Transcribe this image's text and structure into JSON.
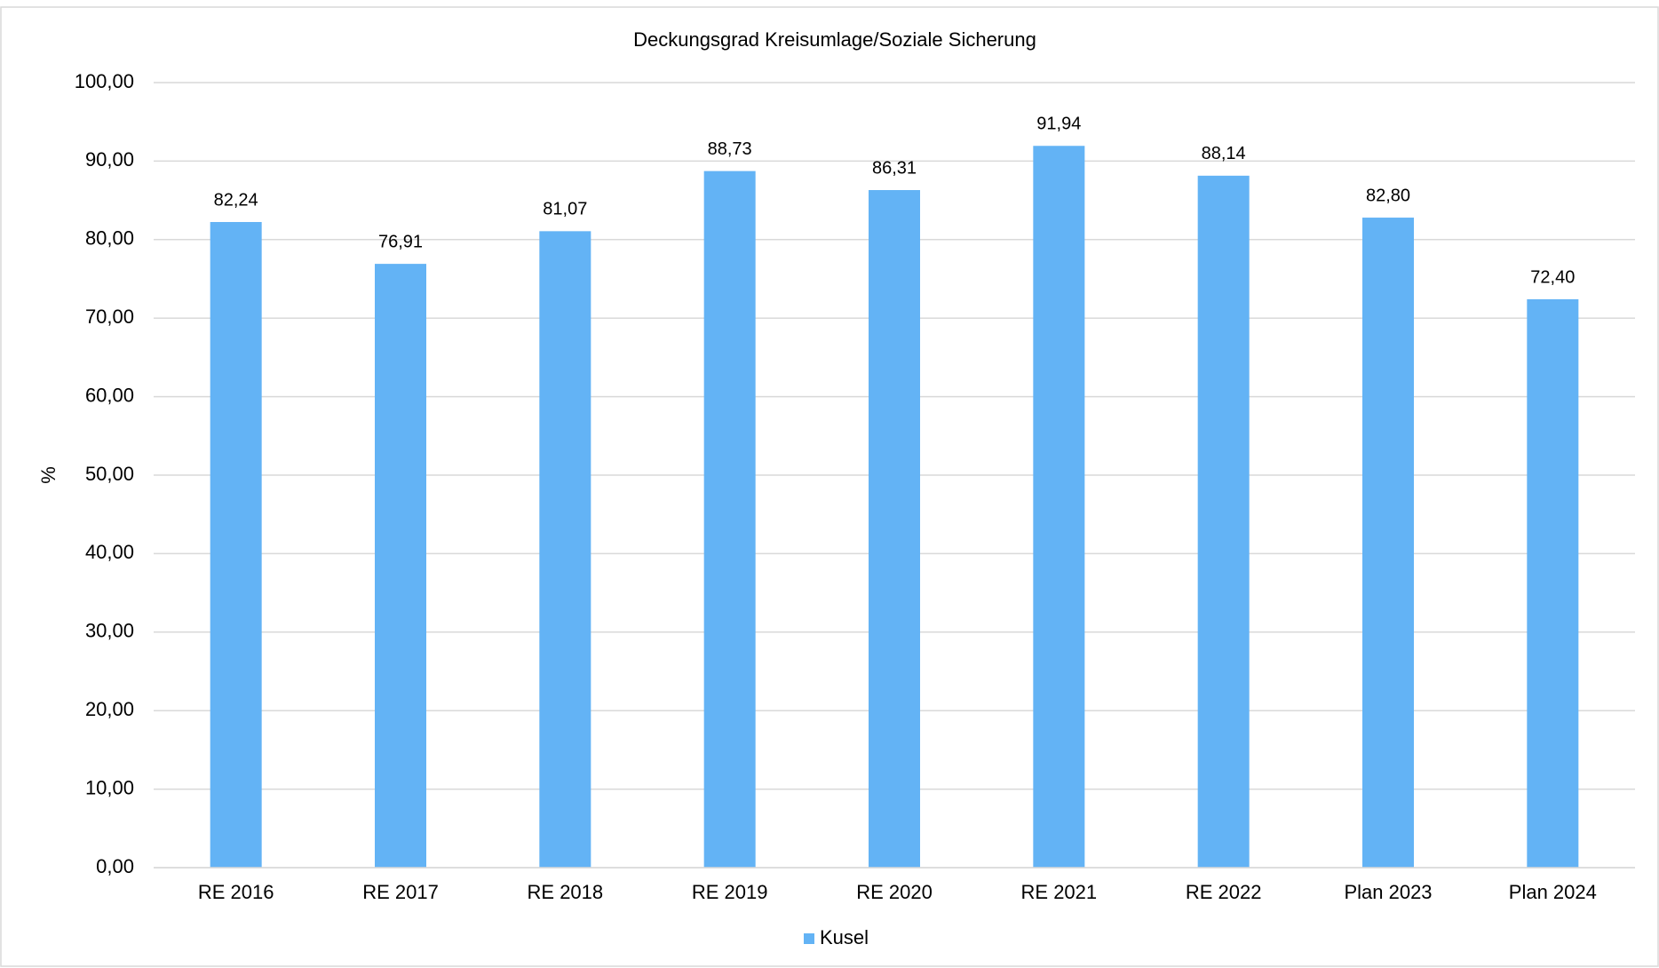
{
  "chart_data": {
    "type": "bar",
    "title": "Deckungsgrad Kreisumlage/Soziale Sicherung",
    "y_label": "%",
    "categories": [
      "RE 2016",
      "RE 2017",
      "RE 2018",
      "RE 2019",
      "RE 2020",
      "RE 2021",
      "RE 2022",
      "Plan 2023",
      "Plan 2024"
    ],
    "series": [
      {
        "name": "Kusel",
        "color": "#63b3f5",
        "values": [
          82.24,
          76.91,
          81.07,
          88.73,
          86.31,
          91.94,
          88.14,
          82.8,
          72.4
        ],
        "value_labels": [
          "82,24",
          "76,91",
          "81,07",
          "88,73",
          "86,31",
          "91,94",
          "88,14",
          "82,80",
          "72,40"
        ]
      }
    ],
    "ylim": [
      0,
      100
    ],
    "yticks": [
      {
        "value": 0,
        "label": "0,00"
      },
      {
        "value": 10,
        "label": "10,00"
      },
      {
        "value": 20,
        "label": "20,00"
      },
      {
        "value": 30,
        "label": "30,00"
      },
      {
        "value": 40,
        "label": "40,00"
      },
      {
        "value": 50,
        "label": "50,00"
      },
      {
        "value": 60,
        "label": "60,00"
      },
      {
        "value": 70,
        "label": "70,00"
      },
      {
        "value": 80,
        "label": "80,00"
      },
      {
        "value": 90,
        "label": "90,00"
      },
      {
        "value": 100,
        "label": "100,00"
      }
    ],
    "grid": true,
    "legend": "bottom"
  }
}
